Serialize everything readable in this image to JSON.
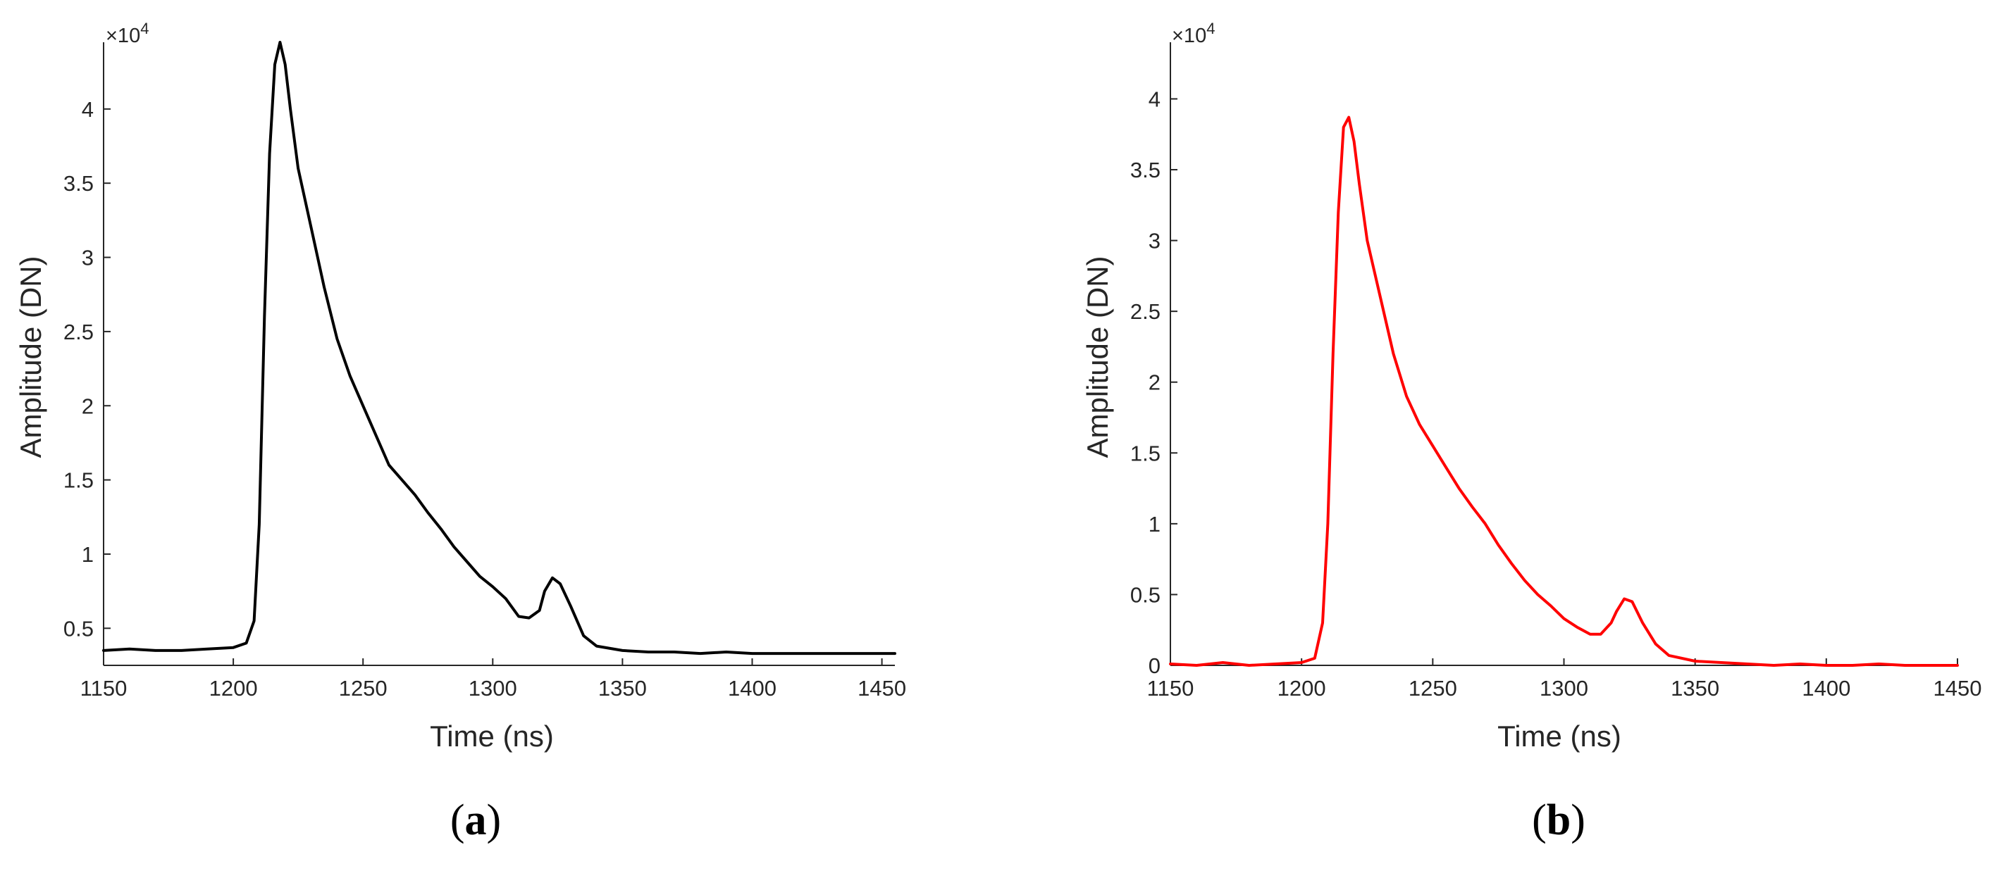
{
  "panels": [
    {
      "panel_label": "a",
      "line_color": "#000000",
      "exponent_label": "×10",
      "exponent_power": "4"
    },
    {
      "panel_label": "b",
      "line_color": "#ff0000",
      "exponent_label": "×10",
      "exponent_power": "4"
    }
  ],
  "chart_data": [
    {
      "type": "line",
      "xlabel": "Time (ns)",
      "ylabel": "Amplitude (DN)",
      "xlim": [
        1150,
        1455
      ],
      "ylim": [
        0.25,
        4.45
      ],
      "y_scale_note": "×10^4",
      "x_ticks": [
        "1150",
        "1200",
        "1250",
        "1300",
        "1350",
        "1400",
        "1450"
      ],
      "y_ticks": [
        "0.5",
        "1",
        "1.5",
        "2",
        "2.5",
        "3",
        "3.5",
        "4"
      ],
      "grid": false,
      "series": [
        {
          "color": "#000000",
          "points": [
            [
              1150,
              0.35
            ],
            [
              1160,
              0.36
            ],
            [
              1170,
              0.35
            ],
            [
              1180,
              0.35
            ],
            [
              1190,
              0.36
            ],
            [
              1200,
              0.37
            ],
            [
              1205,
              0.4
            ],
            [
              1208,
              0.55
            ],
            [
              1210,
              1.2
            ],
            [
              1212,
              2.6
            ],
            [
              1214,
              3.7
            ],
            [
              1216,
              4.3
            ],
            [
              1218,
              4.45
            ],
            [
              1220,
              4.3
            ],
            [
              1222,
              4.0
            ],
            [
              1225,
              3.6
            ],
            [
              1230,
              3.2
            ],
            [
              1235,
              2.8
            ],
            [
              1240,
              2.45
            ],
            [
              1245,
              2.2
            ],
            [
              1250,
              2.0
            ],
            [
              1255,
              1.8
            ],
            [
              1260,
              1.6
            ],
            [
              1265,
              1.5
            ],
            [
              1270,
              1.4
            ],
            [
              1275,
              1.28
            ],
            [
              1280,
              1.17
            ],
            [
              1285,
              1.05
            ],
            [
              1290,
              0.95
            ],
            [
              1295,
              0.85
            ],
            [
              1300,
              0.78
            ],
            [
              1305,
              0.7
            ],
            [
              1310,
              0.58
            ],
            [
              1314,
              0.57
            ],
            [
              1318,
              0.62
            ],
            [
              1320,
              0.75
            ],
            [
              1323,
              0.84
            ],
            [
              1326,
              0.8
            ],
            [
              1330,
              0.65
            ],
            [
              1335,
              0.45
            ],
            [
              1340,
              0.38
            ],
            [
              1350,
              0.35
            ],
            [
              1360,
              0.34
            ],
            [
              1370,
              0.34
            ],
            [
              1380,
              0.33
            ],
            [
              1390,
              0.34
            ],
            [
              1400,
              0.33
            ],
            [
              1410,
              0.33
            ],
            [
              1420,
              0.33
            ],
            [
              1430,
              0.33
            ],
            [
              1440,
              0.33
            ],
            [
              1450,
              0.33
            ],
            [
              1455,
              0.33
            ]
          ]
        }
      ]
    },
    {
      "type": "line",
      "xlabel": "Time (ns)",
      "ylabel": "Amplitude (DN)",
      "xlim": [
        1150,
        1450
      ],
      "ylim": [
        0,
        4.4
      ],
      "y_scale_note": "×10^4",
      "x_ticks": [
        "1150",
        "1200",
        "1250",
        "1300",
        "1350",
        "1400",
        "1450"
      ],
      "y_ticks": [
        "0",
        "0.5",
        "1",
        "1.5",
        "2",
        "2.5",
        "3",
        "3.5",
        "4"
      ],
      "grid": false,
      "series": [
        {
          "color": "#ff0000",
          "points": [
            [
              1150,
              0.01
            ],
            [
              1160,
              0.0
            ],
            [
              1170,
              0.02
            ],
            [
              1180,
              0.0
            ],
            [
              1190,
              0.01
            ],
            [
              1200,
              0.02
            ],
            [
              1205,
              0.05
            ],
            [
              1208,
              0.3
            ],
            [
              1210,
              1.0
            ],
            [
              1212,
              2.2
            ],
            [
              1214,
              3.2
            ],
            [
              1216,
              3.8
            ],
            [
              1218,
              3.87
            ],
            [
              1220,
              3.7
            ],
            [
              1222,
              3.4
            ],
            [
              1225,
              3.0
            ],
            [
              1230,
              2.6
            ],
            [
              1235,
              2.2
            ],
            [
              1240,
              1.9
            ],
            [
              1245,
              1.7
            ],
            [
              1250,
              1.55
            ],
            [
              1255,
              1.4
            ],
            [
              1260,
              1.25
            ],
            [
              1265,
              1.12
            ],
            [
              1270,
              1.0
            ],
            [
              1275,
              0.85
            ],
            [
              1280,
              0.72
            ],
            [
              1285,
              0.6
            ],
            [
              1290,
              0.5
            ],
            [
              1295,
              0.42
            ],
            [
              1300,
              0.33
            ],
            [
              1305,
              0.27
            ],
            [
              1310,
              0.22
            ],
            [
              1314,
              0.22
            ],
            [
              1318,
              0.3
            ],
            [
              1320,
              0.38
            ],
            [
              1323,
              0.47
            ],
            [
              1326,
              0.45
            ],
            [
              1330,
              0.3
            ],
            [
              1335,
              0.15
            ],
            [
              1340,
              0.07
            ],
            [
              1350,
              0.03
            ],
            [
              1360,
              0.02
            ],
            [
              1370,
              0.01
            ],
            [
              1380,
              0.0
            ],
            [
              1390,
              0.01
            ],
            [
              1400,
              0.0
            ],
            [
              1410,
              0.0
            ],
            [
              1420,
              0.01
            ],
            [
              1430,
              0.0
            ],
            [
              1440,
              0.0
            ],
            [
              1450,
              0.0
            ]
          ]
        }
      ]
    }
  ]
}
